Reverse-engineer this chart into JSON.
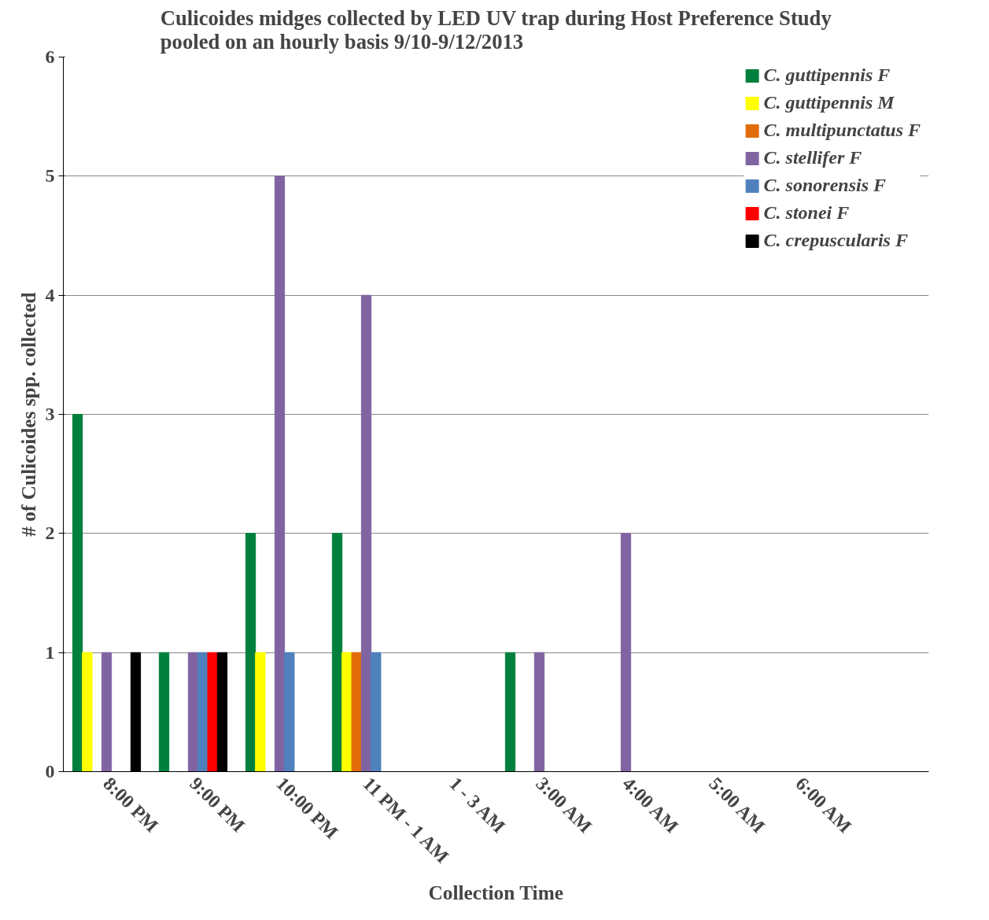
{
  "chart_data": {
    "type": "bar",
    "title": "Culicoides midges collected by LED UV trap during Host Preference Study\npooled on an hourly basis 9/10-9/12/2013",
    "xlabel": "Collection Time",
    "ylabel": "# of Culicoides spp. collected",
    "categories": [
      "8:00 PM",
      "9:00 PM",
      "10:00 PM",
      "11 PM - 1 AM",
      "1 - 3 AM",
      "3:00 AM",
      "4:00 AM",
      "5:00 AM",
      "6:00 AM",
      null
    ],
    "series": [
      {
        "name": "C. guttipennis F",
        "color": "#00803c",
        "values": [
          3,
          1,
          2,
          2,
          0,
          1,
          0,
          0,
          0,
          0
        ]
      },
      {
        "name": "C. guttipennis M",
        "color": "#ffff00",
        "values": [
          1,
          0,
          1,
          1,
          0,
          0,
          0,
          0,
          0,
          0
        ]
      },
      {
        "name": "C. multipunctatus F",
        "color": "#e36c0a",
        "values": [
          0,
          0,
          0,
          1,
          0,
          0,
          0,
          0,
          0,
          0
        ]
      },
      {
        "name": "C. stellifer F",
        "color": "#8064a2",
        "values": [
          1,
          1,
          5,
          4,
          0,
          1,
          2,
          0,
          0,
          0
        ]
      },
      {
        "name": "C. sonorensis F",
        "color": "#4f81bd",
        "values": [
          0,
          1,
          1,
          1,
          0,
          0,
          0,
          0,
          0,
          0
        ]
      },
      {
        "name": "C. stonei F",
        "color": "#ff0000",
        "values": [
          0,
          1,
          0,
          0,
          0,
          0,
          0,
          0,
          0,
          0
        ]
      },
      {
        "name": "C. crepuscularis F",
        "color": "#000000",
        "values": [
          1,
          1,
          0,
          0,
          0,
          0,
          0,
          0,
          0,
          0
        ]
      }
    ],
    "ylim": [
      0,
      6
    ],
    "yticks": [
      0,
      1,
      2,
      3,
      4,
      5,
      6
    ],
    "grid": "y",
    "legend": "top right"
  }
}
